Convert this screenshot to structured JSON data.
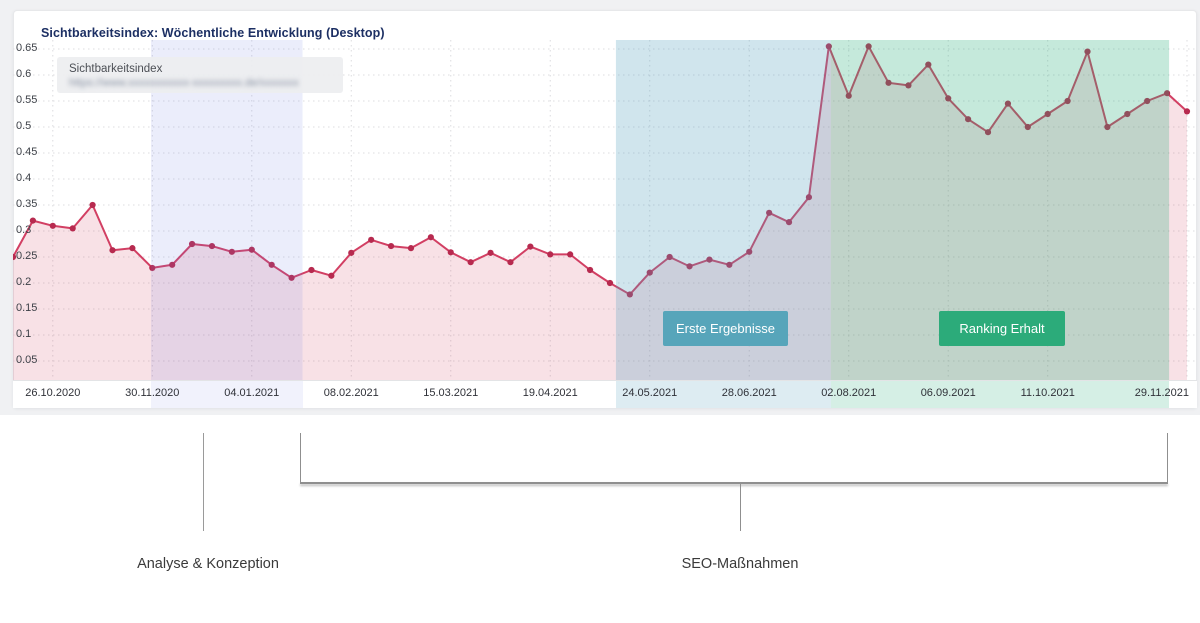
{
  "card": {
    "title": "Sichtbarkeitsindex: Wöchentliche Entwicklung (Desktop)",
    "legend": {
      "label": "Sichtbarkeitsindex",
      "url_masked": "https://www.xxxxxxxxxxx-xxxxxxxxx.de/xxxxxxx"
    },
    "annotations": {
      "first_results": "Erste Ergebnisse",
      "ranking": "Ranking Erhalt"
    }
  },
  "chart_data": {
    "type": "line",
    "title": "Sichtbarkeitsindex: Wöchentliche Entwicklung (Desktop)",
    "xlabel": "",
    "ylabel": "Sichtbarkeitsindex",
    "ylim": [
      0,
      0.68
    ],
    "grid": "dotted",
    "legend_position": "top-left",
    "y_ticks": [
      "0.65",
      "0.6",
      "0.55",
      "0.5",
      "0.45",
      "0.4",
      "0.35",
      "0.3",
      "0.25",
      "0.2",
      "0.15",
      "0.1",
      "0.05"
    ],
    "y_tick_values": [
      0.65,
      0.6,
      0.55,
      0.5,
      0.45,
      0.4,
      0.35,
      0.3,
      0.25,
      0.2,
      0.15,
      0.1,
      0.05
    ],
    "x_tick_labels": [
      "26.10.2020",
      "30.11.2020",
      "04.01.2021",
      "08.02.2021",
      "15.03.2021",
      "19.04.2021",
      "24.05.2021",
      "28.06.2021",
      "02.08.2021",
      "06.09.2021",
      "11.10.2021",
      "29.11.2021"
    ],
    "x_tick_indices": [
      2,
      7,
      12,
      17,
      22,
      27,
      32,
      37,
      42,
      47,
      52,
      59
    ],
    "x_unit": "week",
    "series": [
      {
        "name": "Sichtbarkeitsindex",
        "values": [
          0.25,
          0.32,
          0.31,
          0.305,
          0.35,
          0.263,
          0.267,
          0.229,
          0.235,
          0.275,
          0.271,
          0.26,
          0.264,
          0.235,
          0.21,
          0.225,
          0.214,
          0.258,
          0.283,
          0.271,
          0.267,
          0.288,
          0.259,
          0.24,
          0.258,
          0.24,
          0.27,
          0.255,
          0.255,
          0.225,
          0.2,
          0.178,
          0.22,
          0.25,
          0.232,
          0.245,
          0.235,
          0.26,
          0.335,
          0.317,
          0.365,
          0.655,
          0.56,
          0.655,
          0.585,
          0.58,
          0.62,
          0.555,
          0.515,
          0.49,
          0.545,
          0.5,
          0.525,
          0.55,
          0.645,
          0.5,
          0.525,
          0.55,
          0.565,
          0.53
        ]
      }
    ],
    "bands": [
      {
        "name": "analyse-konzeption",
        "from_index": 6.94,
        "to_index": 14.55,
        "color": "rgba(115,130,225,0.14)",
        "strip_color": "rgba(115,130,225,0.10)"
      },
      {
        "name": "erste-ergebnisse",
        "from_index": 30.3,
        "to_index": 41.1,
        "color": "rgba(85,160,190,0.28)",
        "strip_color": "rgba(85,160,190,0.20)"
      },
      {
        "name": "ranking-erhalt",
        "from_index": 41.1,
        "to_index": 58.1,
        "color": "rgba(46,175,125,0.28)",
        "strip_color": "rgba(46,175,125,0.20)"
      }
    ],
    "annotations": [
      "Erste Ergebnisse",
      "Ranking Erhalt"
    ]
  },
  "phases": [
    {
      "label": "Analyse & Konzeption"
    },
    {
      "label": "SEO-Maßnahmen"
    }
  ],
  "colors": {
    "line": "#d23f63",
    "dot": "#b72a4f",
    "area": "rgba(205,55,90,0.15)",
    "gridline": "#dcdcdf",
    "title": "#1c2f63",
    "btn_blue": "#57a5ba",
    "btn_green": "#2cab7a"
  }
}
